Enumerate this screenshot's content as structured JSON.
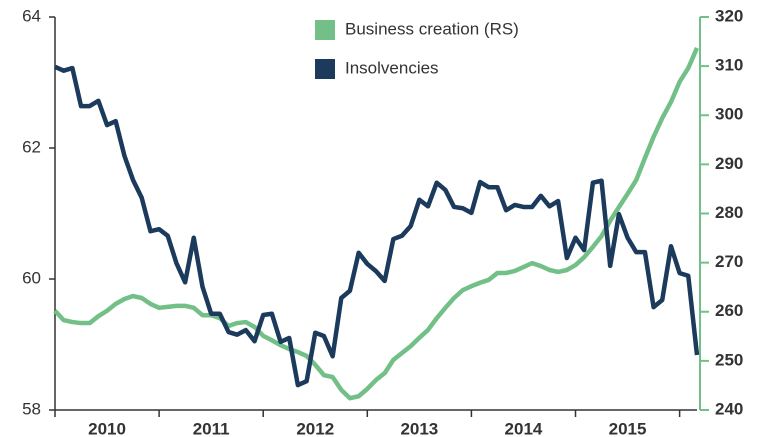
{
  "chart_data": {
    "type": "line",
    "legend_position": "top",
    "x": [
      2010,
      2010.083,
      2010.167,
      2010.25,
      2010.333,
      2010.417,
      2010.5,
      2010.583,
      2010.667,
      2010.75,
      2010.833,
      2010.917,
      2011,
      2011.083,
      2011.167,
      2011.25,
      2011.333,
      2011.417,
      2011.5,
      2011.583,
      2011.667,
      2011.75,
      2011.833,
      2011.917,
      2012,
      2012.083,
      2012.167,
      2012.25,
      2012.333,
      2012.417,
      2012.5,
      2012.583,
      2012.667,
      2012.75,
      2012.833,
      2012.917,
      2013,
      2013.083,
      2013.167,
      2013.25,
      2013.333,
      2013.417,
      2013.5,
      2013.583,
      2013.667,
      2013.75,
      2013.833,
      2013.917,
      2014,
      2014.083,
      2014.167,
      2014.25,
      2014.333,
      2014.417,
      2014.5,
      2014.583,
      2014.667,
      2014.75,
      2014.833,
      2014.917,
      2015,
      2015.083,
      2015.167,
      2015.25,
      2015.333,
      2015.417,
      2015.5,
      2015.583,
      2015.667,
      2015.75,
      2015.833,
      2015.917,
      2016,
      2016.083,
      2016.167
    ],
    "series": [
      {
        "name": "Business creation (RS)",
        "color": "#72c088",
        "axis": "y2",
        "values": [
          260.2,
          258.3,
          257.9,
          257.7,
          257.7,
          259.1,
          260.2,
          261.6,
          262.6,
          263.2,
          262.8,
          261.6,
          260.8,
          261.0,
          261.2,
          261.2,
          260.8,
          259.3,
          259.3,
          258.7,
          257.1,
          257.7,
          257.9,
          256.9,
          255.1,
          254.2,
          253.2,
          252.4,
          251.8,
          251.0,
          249.2,
          247.1,
          246.7,
          244.1,
          242.4,
          242.8,
          244.3,
          246.1,
          247.5,
          250.2,
          251.6,
          253.0,
          254.7,
          256.3,
          258.7,
          260.8,
          262.8,
          264.4,
          265.2,
          265.9,
          266.5,
          267.9,
          267.9,
          268.3,
          269.1,
          269.9,
          269.3,
          268.5,
          268.1,
          268.5,
          269.5,
          271.1,
          273.2,
          275.4,
          278.5,
          281.3,
          284.0,
          286.8,
          291.3,
          295.6,
          299.4,
          302.7,
          306.8,
          309.6,
          313.7
        ]
      },
      {
        "name": "Insolvencies",
        "color": "#1b3a5c",
        "values": [
          63.24,
          63.18,
          63.22,
          62.64,
          62.64,
          62.72,
          62.35,
          62.41,
          61.88,
          61.51,
          61.24,
          60.73,
          60.76,
          60.66,
          60.24,
          59.95,
          60.63,
          59.88,
          59.47,
          59.47,
          59.19,
          59.15,
          59.22,
          59.05,
          59.45,
          59.47,
          59.04,
          59.1,
          58.38,
          58.44,
          59.18,
          59.13,
          58.82,
          59.71,
          59.82,
          60.4,
          60.23,
          60.12,
          59.97,
          60.61,
          60.66,
          60.81,
          61.21,
          61.11,
          61.47,
          61.36,
          61.1,
          61.08,
          61.01,
          61.48,
          61.4,
          61.4,
          61.05,
          61.13,
          61.1,
          61.1,
          61.27,
          61.11,
          61.19,
          60.32,
          60.63,
          60.44,
          61.47,
          61.5,
          60.2,
          60.99,
          60.63,
          60.41,
          60.41,
          59.57,
          59.68,
          60.5,
          60.09,
          60.05,
          58.84
        ]
      }
    ],
    "xlim": [
      2010,
      2016.167
    ],
    "xticks": [
      {
        "value": 2010.5,
        "label": "2010"
      },
      {
        "value": 2011.5,
        "label": "2011"
      },
      {
        "value": 2012.5,
        "label": "2012"
      },
      {
        "value": 2013.5,
        "label": "2013"
      },
      {
        "value": 2014.5,
        "label": "2014"
      },
      {
        "value": 2015.5,
        "label": "2015"
      }
    ],
    "ylim": [
      58,
      64
    ],
    "yticks": [
      58,
      60,
      62,
      64
    ],
    "y2lim": [
      240,
      320
    ],
    "y2ticks": [
      240,
      250,
      260,
      270,
      280,
      290,
      300,
      310,
      320
    ]
  }
}
